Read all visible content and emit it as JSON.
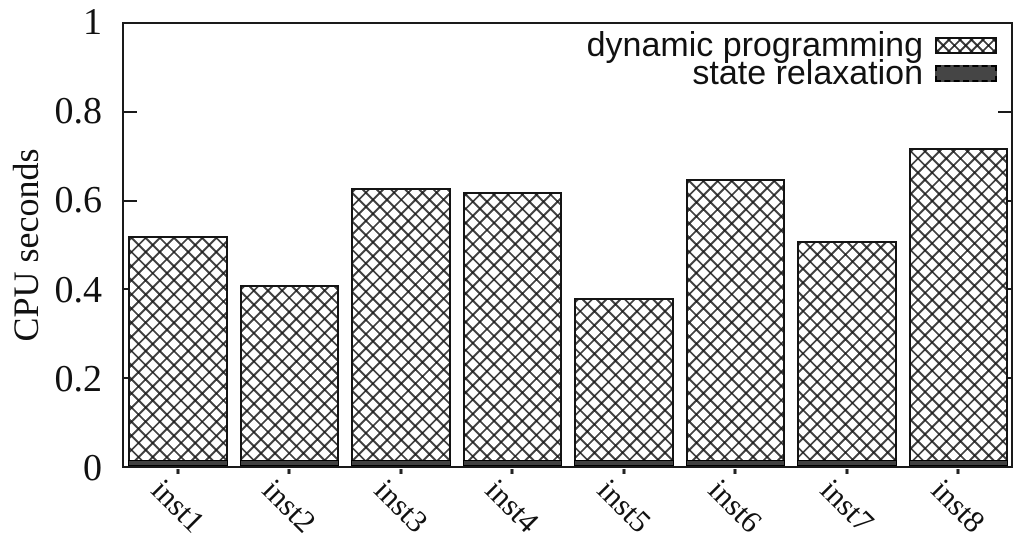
{
  "chart_data": {
    "type": "bar",
    "title": "",
    "xlabel": "",
    "ylabel": "CPU seconds",
    "ylim": [
      0,
      1
    ],
    "yticks": [
      "0",
      "0.2",
      "0.4",
      "0.6",
      "0.8",
      "1"
    ],
    "grid": false,
    "legend_position": "top-right-inside",
    "categories": [
      "inst1",
      "inst2",
      "inst3",
      "inst4",
      "inst5",
      "inst6",
      "inst7",
      "inst8"
    ],
    "series": [
      {
        "name": "dynamic programming",
        "style": "crosshatch",
        "values": [
          0.52,
          0.41,
          0.63,
          0.62,
          0.38,
          0.65,
          0.51,
          0.72
        ]
      },
      {
        "name": "state relaxation",
        "style": "solid-dark",
        "values": [
          0.01,
          0.01,
          0.01,
          0.01,
          0.01,
          0.01,
          0.01,
          0.01
        ]
      }
    ],
    "colors": {
      "frame": "#1a1a1a",
      "bar_fill": "#ffffff",
      "hatch_line": "#191919",
      "solid_dark": "#404040",
      "text": "#111111"
    }
  }
}
